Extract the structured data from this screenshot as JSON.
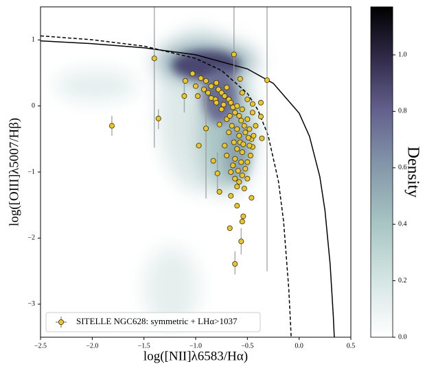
{
  "chart_data": {
    "type": "scatter",
    "xlabel": "log([NII]λ6583/Hα)",
    "ylabel": "log([OIII]λ5007/Hβ)",
    "xlim": [
      -2.5,
      0.5
    ],
    "ylim": [
      -3.5,
      1.5
    ],
    "xticks": [
      {
        "value": -2.5,
        "label": "−2.5"
      },
      {
        "value": -2.0,
        "label": "−2.0"
      },
      {
        "value": -1.5,
        "label": "−1.5"
      },
      {
        "value": -1.0,
        "label": "−1.0"
      },
      {
        "value": -0.5,
        "label": "−0.5"
      },
      {
        "value": 0.0,
        "label": "0.0"
      },
      0.5
    ],
    "yticks": [
      {
        "value": -3,
        "label": "−3"
      },
      {
        "value": -2,
        "label": "−2"
      },
      {
        "value": -1,
        "label": "−1"
      },
      0,
      1
    ],
    "legend": "lower left",
    "series": [
      {
        "name": "SITELLE NGC628: symmetric + LHα>1037",
        "color": "#e8c43a",
        "x": [
          -1.4,
          -1.81,
          -1.36,
          -1.11,
          -0.9,
          -0.63,
          -0.31,
          -0.56,
          -0.62,
          -0.67,
          -0.54,
          -0.55,
          -0.6,
          -0.46,
          -0.77,
          -0.66,
          -0.79,
          -0.83,
          -0.97,
          -0.81,
          -1.03,
          -1.1,
          -0.57,
          -0.37,
          -0.37,
          -0.36,
          -0.45,
          -0.95,
          -0.9,
          -0.85,
          -0.8,
          -0.78,
          -0.75,
          -0.72,
          -0.7,
          -0.68,
          -0.66,
          -0.64,
          -0.62,
          -0.6,
          -0.58,
          -0.56,
          -0.55,
          -0.53,
          -0.52,
          -0.5,
          -0.48,
          -0.46,
          -0.45,
          -0.47,
          -0.5,
          -0.52,
          -0.55,
          -0.57,
          -0.58,
          -0.6,
          -0.62,
          -0.64,
          -0.66,
          -0.62,
          -0.58,
          -0.55,
          -0.5,
          -0.53,
          -0.6,
          -0.7,
          -0.72,
          -0.68,
          -0.65,
          -0.7,
          -0.75,
          -0.8,
          -0.85,
          -0.88,
          -0.92,
          -1.0,
          -0.98,
          -0.55,
          -0.5,
          -0.45,
          -0.42,
          -0.44,
          -0.48,
          -0.56,
          -0.6,
          -0.63,
          -0.67,
          -0.73,
          -0.77,
          -0.59,
          -0.54,
          -0.49
        ],
        "y": [
          0.72,
          -0.3,
          -0.19,
          0.15,
          -0.34,
          0.78,
          0.39,
          -2.05,
          -2.39,
          -1.85,
          -1.67,
          -1.75,
          -1.51,
          -1.39,
          -1.3,
          -1.36,
          -1.02,
          -0.83,
          -0.6,
          0.1,
          0.49,
          0.38,
          0.41,
          0.05,
          -0.16,
          -0.49,
          0.03,
          0.42,
          0.38,
          0.3,
          0.35,
          0.25,
          0.2,
          0.15,
          0.28,
          0.1,
          0.05,
          -0.02,
          -0.1,
          0.0,
          -0.15,
          -0.22,
          -0.05,
          -0.3,
          -0.4,
          -0.2,
          -0.35,
          -0.5,
          -0.62,
          -0.75,
          -0.85,
          -0.95,
          -0.7,
          -0.55,
          -0.45,
          -0.65,
          -0.8,
          -0.9,
          -1.0,
          -1.1,
          -1.15,
          -1.05,
          -1.1,
          -1.25,
          -1.22,
          -0.75,
          -0.6,
          -0.4,
          -0.3,
          -0.2,
          -0.05,
          0.05,
          0.12,
          0.2,
          0.25,
          0.3,
          0.15,
          0.2,
          0.1,
          -0.1,
          -0.3,
          -0.45,
          -0.6,
          -0.85,
          -0.35,
          -0.55,
          -0.15,
          0.02,
          -0.28,
          -0.98,
          -0.58,
          -0.48
        ]
      }
    ],
    "error_bars": {
      "x": [
        -1.4,
        -1.81,
        -1.11,
        -0.9,
        -0.63,
        -0.31,
        -0.56,
        -0.62,
        -0.79,
        -1.36
      ],
      "y_low": [
        -0.63,
        -0.45,
        -0.1,
        -1.4,
        0.3,
        -2.5,
        -2.25,
        -2.55,
        -1.3,
        -0.35
      ],
      "y_high": [
        1.5,
        -0.15,
        0.4,
        0.2,
        1.5,
        1.5,
        -1.85,
        -2.2,
        -0.7,
        -0.05
      ]
    },
    "curves": [
      {
        "dashed": false,
        "x": [
          -2.5,
          -2.0,
          -1.5,
          -1.0,
          -0.5,
          -0.25,
          0.0,
          0.1,
          0.2,
          0.25,
          0.3,
          0.33,
          0.34
        ],
        "y": [
          0.985,
          0.943,
          0.88,
          0.775,
          0.561,
          0.343,
          -0.108,
          -0.459,
          -1.069,
          -1.583,
          -2.398,
          -3.167,
          -3.5
        ]
      },
      {
        "dashed": true,
        "x": [
          -2.5,
          -2.0,
          -1.5,
          -1.0,
          -0.75,
          -0.5,
          -0.4,
          -0.3,
          -0.2,
          -0.15,
          -0.1,
          -0.08,
          -0.077
        ],
        "y": [
          1.061,
          1.002,
          0.906,
          0.719,
          0.537,
          0.191,
          -0.056,
          -0.443,
          -1.14,
          -1.75,
          -2.767,
          -3.392,
          -3.503
        ]
      }
    ],
    "colorbar": {
      "label": "Density",
      "lim": [
        0,
        1.17
      ],
      "ticks": [
        {
          "value": 0.0,
          "label": "0.0"
        },
        0.2,
        0.4,
        0.6,
        0.8,
        {
          "value": 1.0,
          "label": "1.0"
        }
      ]
    }
  }
}
